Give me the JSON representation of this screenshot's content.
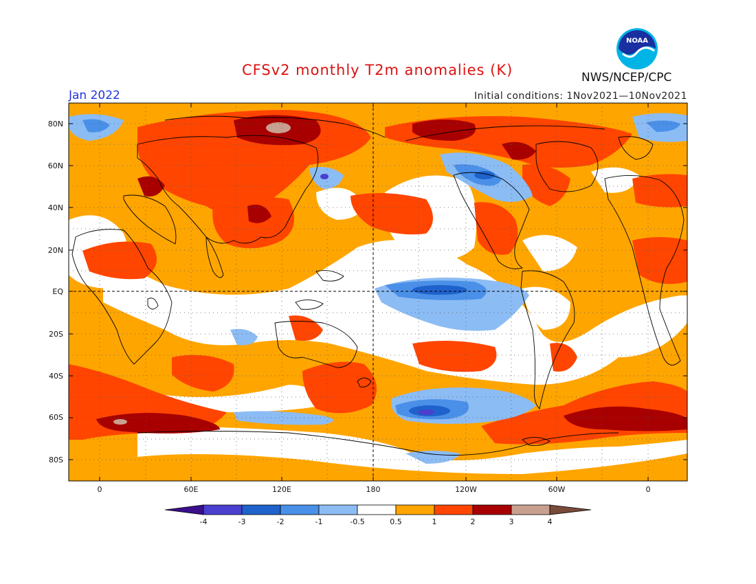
{
  "header": {
    "title": "CFSv2 monthly T2m anomalies (K)",
    "month": "Jan 2022",
    "initial_conditions": "Initial conditions: 1Nov2021—10Nov2021",
    "agency": "NWS/NCEP/CPC",
    "logo_text": "NOAA"
  },
  "axes": {
    "lat_labels": [
      "80N",
      "60N",
      "40N",
      "20N",
      "EQ",
      "20S",
      "40S",
      "60S",
      "80S"
    ],
    "lon_labels": [
      "0",
      "60E",
      "120E",
      "180",
      "120W",
      "60W",
      "0"
    ]
  },
  "legend": {
    "tick_labels": [
      "-4",
      "-3",
      "-2",
      "-1",
      "-0.5",
      "0.5",
      "1",
      "2",
      "3",
      "4"
    ],
    "colors": [
      "#3b0f8c",
      "#4a3fcf",
      "#1f62cc",
      "#4a90e8",
      "#8cbcf4",
      "#ffffff",
      "#ffa500",
      "#ff4500",
      "#a80000",
      "#c8a090",
      "#7a4a3a"
    ]
  }
}
